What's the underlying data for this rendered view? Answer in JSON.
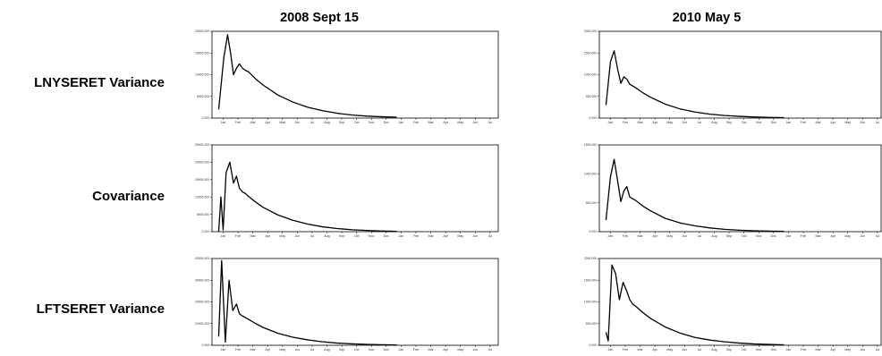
{
  "columns": [
    {
      "title": "2008 Sept 15"
    },
    {
      "title": "2010 May 5"
    }
  ],
  "rows": [
    {
      "label": "LNYSERET Variance"
    },
    {
      "label": "Covariance"
    },
    {
      "label": "LFTSERET Variance"
    }
  ],
  "chart_data": [
    {
      "type": "line",
      "title": "2008 Sept 15",
      "ylabel": "LNYSERET Variance",
      "x_month_ticks": [
        "Jan",
        "Feb",
        "Mar",
        "Apr",
        "May",
        "Jun",
        "Jul",
        "Aug",
        "Sep",
        "Oct",
        "Nov",
        "Dec",
        "Jan",
        "Feb",
        "Mar",
        "Apr",
        "May",
        "Jun",
        "Jul"
      ],
      "y_ticks": [
        "0.000",
        "5000.000",
        "10000.000",
        "15000.000",
        "20000.000"
      ],
      "ylim": [
        0,
        20000
      ],
      "x": [
        0,
        0.35,
        0.6,
        0.8,
        1,
        1.2,
        1.4,
        1.6,
        1.8,
        2,
        2.5,
        3,
        4,
        5,
        6,
        7,
        8,
        9,
        10,
        11,
        12
      ],
      "values": [
        2000,
        14000,
        19200,
        15000,
        10000,
        11500,
        12500,
        11500,
        11000,
        10700,
        9000,
        7600,
        5300,
        3700,
        2500,
        1700,
        1100,
        700,
        450,
        300,
        200
      ]
    },
    {
      "type": "line",
      "title": "2010 May 5",
      "ylabel": "LNYSERET Variance",
      "x_month_ticks": [
        "Jan",
        "Feb",
        "Mar",
        "Apr",
        "May",
        "Jun",
        "Jul",
        "Aug",
        "Sep",
        "Oct",
        "Nov",
        "Dec",
        "Jan",
        "Feb",
        "Mar",
        "Apr",
        "May",
        "Jun",
        "Jul"
      ],
      "y_ticks": [
        "0.000",
        "500.000",
        "1000.000",
        "1500.000",
        "2000.000"
      ],
      "ylim": [
        0,
        2000
      ],
      "x": [
        0,
        0.3,
        0.55,
        0.8,
        1,
        1.2,
        1.4,
        1.6,
        1.8,
        2,
        2.5,
        3,
        4,
        5,
        6,
        7,
        8,
        9,
        10,
        11,
        12
      ],
      "values": [
        300,
        1300,
        1550,
        1100,
        800,
        950,
        900,
        780,
        740,
        700,
        580,
        480,
        320,
        210,
        140,
        90,
        60,
        40,
        25,
        15,
        10
      ]
    },
    {
      "type": "line",
      "title": "2008 Sept 15",
      "ylabel": "Covariance",
      "x_month_ticks": [
        "Jan",
        "Feb",
        "Mar",
        "Apr",
        "May",
        "Jun",
        "Jul",
        "Aug",
        "Sep",
        "Oct",
        "Nov",
        "Dec",
        "Jan",
        "Feb",
        "Mar",
        "Apr",
        "May",
        "Jun",
        "Jul"
      ],
      "y_ticks": [
        "0.000",
        "5000.000",
        "10000.000",
        "15000.000",
        "20000.000",
        "25000.000"
      ],
      "ylim": [
        0,
        25000
      ],
      "x": [
        0,
        0.15,
        0.3,
        0.5,
        0.75,
        1,
        1.2,
        1.4,
        1.6,
        1.8,
        2,
        2.5,
        3,
        4,
        5,
        6,
        7,
        8,
        9,
        10,
        11,
        12
      ],
      "values": [
        0,
        10000,
        500,
        17000,
        20000,
        14000,
        16000,
        12500,
        11500,
        11000,
        10200,
        8500,
        7000,
        4800,
        3300,
        2200,
        1400,
        900,
        550,
        350,
        200,
        100
      ]
    },
    {
      "type": "line",
      "title": "2010 May 5",
      "ylabel": "Covariance",
      "x_month_ticks": [
        "Jan",
        "Feb",
        "Mar",
        "Apr",
        "May",
        "Jun",
        "Jul",
        "Aug",
        "Sep",
        "Oct",
        "Nov",
        "Dec",
        "Jan",
        "Feb",
        "Mar",
        "Apr",
        "May",
        "Jun",
        "Jul"
      ],
      "y_ticks": [
        "0.000",
        "500.000",
        "1000.000",
        "1500.000"
      ],
      "ylim": [
        0,
        1500
      ],
      "x": [
        0,
        0.3,
        0.55,
        0.8,
        1,
        1.2,
        1.4,
        1.6,
        1.8,
        2,
        2.5,
        3,
        4,
        5,
        6,
        7,
        8,
        9,
        10,
        11,
        12
      ],
      "values": [
        200,
        950,
        1250,
        850,
        520,
        700,
        780,
        600,
        570,
        540,
        440,
        360,
        230,
        150,
        100,
        65,
        40,
        25,
        15,
        10,
        5
      ]
    },
    {
      "type": "line",
      "title": "2008 Sept 15",
      "ylabel": "LFTSERET Variance",
      "x_month_ticks": [
        "Jan",
        "Feb",
        "Mar",
        "Apr",
        "May",
        "Jun",
        "Jul",
        "Aug",
        "Sep",
        "Oct",
        "Nov",
        "Dec",
        "Jan",
        "Feb",
        "Mar",
        "Apr",
        "May",
        "Jun",
        "Jul"
      ],
      "y_ticks": [
        "0.000",
        "10000.000",
        "20000.000",
        "30000.000",
        "40000.000"
      ],
      "ylim": [
        0,
        40000
      ],
      "x": [
        0,
        0.2,
        0.45,
        0.7,
        0.95,
        1.2,
        1.4,
        1.6,
        1.8,
        2,
        2.5,
        3,
        4,
        5,
        6,
        7,
        8,
        9,
        10,
        11,
        12
      ],
      "values": [
        4000,
        39000,
        1500,
        30000,
        16000,
        19000,
        14500,
        13500,
        12800,
        12000,
        10000,
        8200,
        5500,
        3700,
        2500,
        1600,
        1000,
        650,
        400,
        250,
        150
      ]
    },
    {
      "type": "line",
      "title": "2010 May 5",
      "ylabel": "LFTSERET Variance",
      "x_month_ticks": [
        "Jan",
        "Feb",
        "Mar",
        "Apr",
        "May",
        "Jun",
        "Jul",
        "Aug",
        "Sep",
        "Oct",
        "Nov",
        "Dec",
        "Jan",
        "Feb",
        "Mar",
        "Apr",
        "May",
        "Jun",
        "Jul"
      ],
      "y_ticks": [
        "0.000",
        "500.000",
        "1000.000",
        "1500.000",
        "2000.000"
      ],
      "ylim": [
        0,
        2000
      ],
      "x": [
        0,
        0.15,
        0.4,
        0.65,
        0.9,
        1.15,
        1.4,
        1.6,
        1.8,
        2,
        2.5,
        3,
        4,
        5,
        6,
        7,
        8,
        9,
        10,
        11,
        12
      ],
      "values": [
        300,
        100,
        1850,
        1650,
        1050,
        1450,
        1250,
        1050,
        950,
        900,
        750,
        620,
        420,
        280,
        180,
        120,
        80,
        50,
        30,
        20,
        10
      ]
    }
  ]
}
